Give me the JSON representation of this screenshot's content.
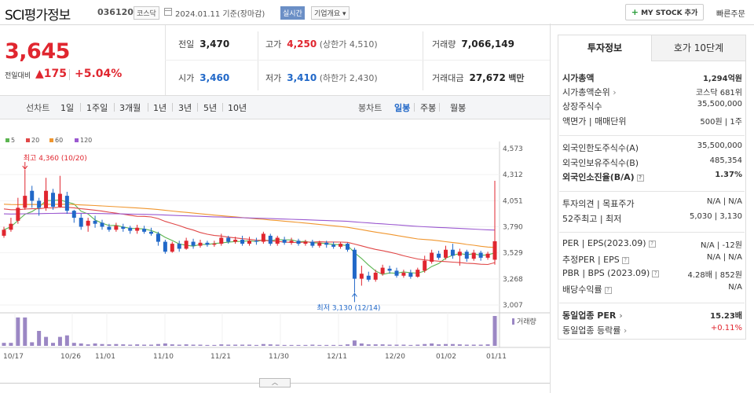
{
  "header": {
    "name": "SCI평가정보",
    "code": "036120",
    "market": "코스닥",
    "date": "2024.01.11 기준(장마감)",
    "realtime": "실시간",
    "company_info": "기업개요",
    "mystock": "MY STOCK 추가",
    "quick_order": "빠른주문"
  },
  "price": {
    "current": "3,645",
    "change_label": "전일대비",
    "change": "175",
    "change_pct": "+5.04%"
  },
  "stats": {
    "prev_label": "전일",
    "prev": "3,470",
    "high_label": "고가",
    "high": "4,250",
    "upper_limit": "(상한가 4,510)",
    "volume_label": "거래량",
    "volume": "7,066,149",
    "open_label": "시가",
    "open": "3,460",
    "low_label": "저가",
    "low": "3,410",
    "lower_limit": "(하한가 2,430)",
    "amount_label": "거래대금",
    "amount": "27,672",
    "amount_unit": "백만"
  },
  "toolbar": {
    "line_chart": "선차트",
    "periods": [
      "1일",
      "1주일",
      "3개월",
      "1년",
      "3년",
      "5년",
      "10년"
    ],
    "candle_chart": "봉차트",
    "candle_periods": [
      "일봉",
      "주봉",
      "월봉"
    ],
    "active_candle": "일봉"
  },
  "legend": [
    {
      "label": "5",
      "color": "#5bb450"
    },
    {
      "label": "20",
      "color": "#e04848"
    },
    {
      "label": "60",
      "color": "#f0962e"
    },
    {
      "label": "120",
      "color": "#9b59d0"
    }
  ],
  "chart_data": {
    "type": "candlestick",
    "y_ticks": [
      "4,573",
      "4,312",
      "4,051",
      "3,790",
      "3,529",
      "3,268",
      "3,007"
    ],
    "x_ticks": [
      "10/17",
      "10/26",
      "11/01",
      "11/10",
      "11/21",
      "11/30",
      "12/11",
      "12/20",
      "01/02",
      "01/11"
    ],
    "high_annotation": "최고 4,360 (10/20)",
    "low_annotation": "최저 3,130 (12/14)",
    "volume_label": "거래량",
    "ylim": [
      3007,
      4573
    ]
  },
  "panel": {
    "tab_invest": "투자정보",
    "tab_hoga": "호가 10단계",
    "rows": [
      {
        "label": "시가총액",
        "value": "1,294억원",
        "bold": true
      },
      {
        "label": "시가총액순위",
        "value": "코스닥 681위",
        "arrow": true
      },
      {
        "label": "상장주식수",
        "value": "35,500,000"
      },
      {
        "label": "액면가 | 매매단위",
        "value": "500원 | 1주"
      },
      {
        "label": "외국인한도주식수(A)",
        "value": "35,500,000"
      },
      {
        "label": "외국인보유주식수(B)",
        "value": "485,354"
      },
      {
        "label": "외국인소진율(B/A)",
        "value": "1.37%",
        "bold": true,
        "help": true
      },
      {
        "label": "투자의견 | 목표주가",
        "value": "N/A | N/A"
      },
      {
        "label": "52주최고 | 최저",
        "value": "5,030 | 3,130"
      },
      {
        "label": "PER | EPS(2023.09)",
        "value": "N/A | -12원",
        "help": true
      },
      {
        "label": "추정PER | EPS",
        "value": "N/A | N/A",
        "help": true
      },
      {
        "label": "PBR | BPS (2023.09)",
        "value": "4.28배 | 852원",
        "help": true
      },
      {
        "label": "배당수익률",
        "value": "N/A",
        "help": true
      },
      {
        "label": "동일업종 PER",
        "value": "15.23배",
        "bold": true,
        "arrow": true
      },
      {
        "label": "동일업종 등락률",
        "value": "+0.11%",
        "arrow": true,
        "red": true
      }
    ]
  }
}
